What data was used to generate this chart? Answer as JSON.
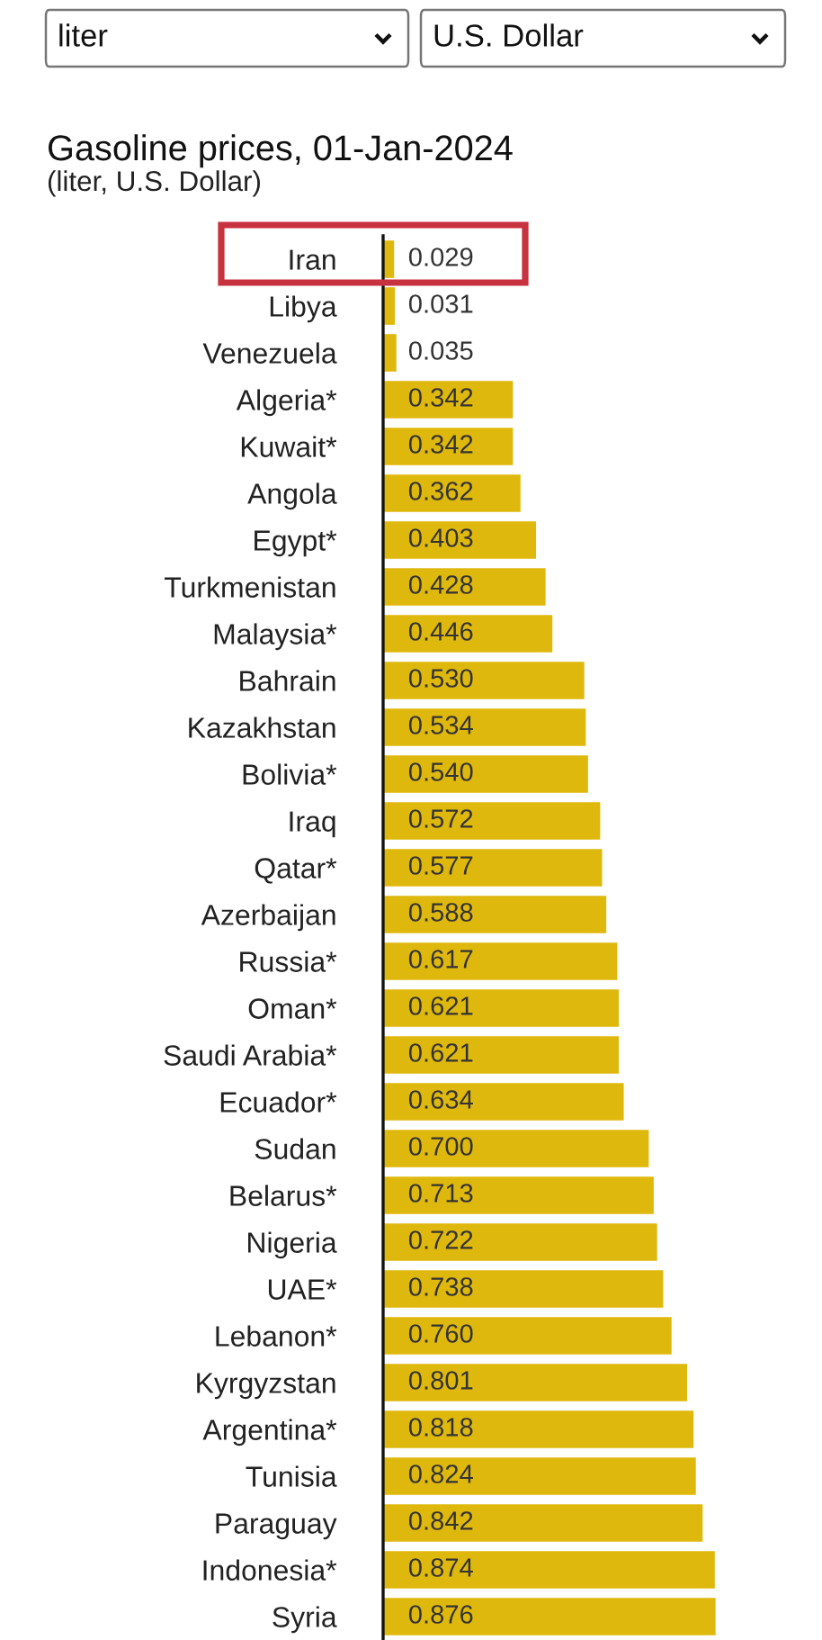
{
  "chart_data": {
    "type": "bar",
    "orientation": "horizontal",
    "title": "Gasoline prices, 01-Jan-2024",
    "subtitle": "(liter, U.S. Dollar)",
    "annotations": [
      "liter",
      "U.S. Dollar"
    ],
    "categories": [
      "Iran",
      "Libya",
      "Venezuela",
      "Algeria*",
      "Kuwait*",
      "Angola",
      "Egypt*",
      "Turkmenistan",
      "Malaysia*",
      "Bahrain",
      "Kazakhstan",
      "Bolivia*",
      "Iraq",
      "Qatar*",
      "Azerbaijan",
      "Russia*",
      "Oman*",
      "Saudi Arabia*",
      "Ecuador*",
      "Sudan",
      "Belarus*",
      "Nigeria",
      "UAE*",
      "Lebanon*",
      "Kyrgyzstan",
      "Argentina*",
      "Tunisia",
      "Paraguay",
      "Indonesia*",
      "Syria"
    ],
    "values": [
      0.029,
      0.031,
      0.035,
      0.342,
      0.342,
      0.362,
      0.403,
      0.428,
      0.446,
      0.53,
      0.534,
      0.54,
      0.572,
      0.577,
      0.588,
      0.617,
      0.621,
      0.621,
      0.634,
      0.7,
      0.713,
      0.722,
      0.738,
      0.76,
      0.801,
      0.818,
      0.824,
      0.842,
      0.874,
      0.876
    ],
    "value_labels": [
      "0.029",
      "0.031",
      "0.035",
      "0.342",
      "0.342",
      "0.362",
      "0.403",
      "0.428",
      "0.446",
      "0.530",
      "0.534",
      "0.540",
      "0.572",
      "0.577",
      "0.588",
      "0.617",
      "0.621",
      "0.621",
      "0.634",
      "0.700",
      "0.713",
      "0.722",
      "0.738",
      "0.760",
      "0.801",
      "0.818",
      "0.824",
      "0.842",
      "0.874",
      "0.876"
    ],
    "color": "#dfb80d",
    "tick_labels": "y"
  }
}
